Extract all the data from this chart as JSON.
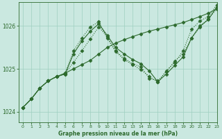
{
  "bg_color": "#cae8e0",
  "grid_color": "#9ecfbf",
  "line_color": "#2d6a2d",
  "title": "Graphe pression niveau de la mer (hPa)",
  "xlim": [
    -0.5,
    23
  ],
  "ylim": [
    1023.75,
    1026.55
  ],
  "yticks": [
    1024,
    1025,
    1026
  ],
  "xticks": [
    0,
    1,
    2,
    3,
    4,
    5,
    6,
    7,
    8,
    9,
    10,
    11,
    12,
    13,
    14,
    15,
    16,
    17,
    18,
    19,
    20,
    21,
    22,
    23
  ],
  "series": [
    {
      "x": [
        0,
        1,
        2,
        3,
        4,
        5,
        6,
        7,
        8,
        9,
        10,
        11,
        12,
        13,
        14,
        15,
        16,
        17,
        18,
        19,
        20,
        21,
        22,
        23
      ],
      "y": [
        1024.1,
        1024.3,
        1024.55,
        1024.72,
        1024.82,
        1024.9,
        1025.0,
        1025.1,
        1025.2,
        1025.35,
        1025.5,
        1025.6,
        1025.68,
        1025.75,
        1025.82,
        1025.88,
        1025.93,
        1025.98,
        1026.03,
        1026.08,
        1026.15,
        1026.22,
        1026.3,
        1026.4
      ],
      "style": "solid",
      "marker": "D",
      "markersize": 2.5,
      "lw": 0.8
    },
    {
      "x": [
        0,
        1,
        2,
        3,
        4,
        5,
        6,
        7,
        8,
        9,
        10,
        11,
        12,
        13,
        14,
        15,
        16,
        17,
        18,
        19,
        20,
        21,
        22,
        23
      ],
      "y": [
        1024.1,
        1024.3,
        1024.55,
        1024.72,
        1024.82,
        1024.9,
        1025.15,
        1025.42,
        1025.7,
        1025.98,
        1025.75,
        1025.42,
        1025.25,
        1025.12,
        1025.05,
        1024.78,
        1024.72,
        1024.93,
        1025.18,
        1025.35,
        1025.72,
        1025.97,
        1026.17,
        1026.4
      ],
      "style": "dotted",
      "marker": "D",
      "markersize": 2.5,
      "lw": 0.8
    },
    {
      "x": [
        0,
        1,
        2,
        3,
        4,
        5,
        6,
        7,
        8,
        9,
        10,
        11,
        12,
        13,
        14,
        15,
        16,
        17,
        18,
        19,
        20,
        21,
        22,
        23
      ],
      "y": [
        1024.1,
        1024.3,
        1024.55,
        1024.72,
        1024.82,
        1024.88,
        1025.35,
        1025.65,
        1025.88,
        1026.05,
        1025.78,
        1025.5,
        1025.35,
        1025.22,
        1025.12,
        1024.95,
        1024.7,
        1024.88,
        1025.08,
        1025.28,
        1025.72,
        1026.0,
        1026.15,
        1026.45
      ],
      "style": "solid",
      "marker": "D",
      "markersize": 2.5,
      "lw": 0.8
    },
    {
      "x": [
        0,
        1,
        2,
        3,
        4,
        5,
        6,
        7,
        8,
        9,
        10,
        11,
        12,
        13,
        14,
        15,
        16,
        17,
        18,
        19,
        20,
        21,
        22,
        23
      ],
      "y": [
        1024.1,
        1024.3,
        1024.55,
        1024.72,
        1024.82,
        1024.88,
        1025.42,
        1025.72,
        1025.98,
        1026.1,
        1025.72,
        1025.4,
        1025.22,
        1025.1,
        1024.98,
        1024.82,
        1024.7,
        1024.95,
        1025.15,
        1025.42,
        1025.92,
        1026.12,
        1026.22,
        1026.5
      ],
      "style": "dotted",
      "marker": "D",
      "markersize": 2.5,
      "lw": 0.8
    }
  ]
}
